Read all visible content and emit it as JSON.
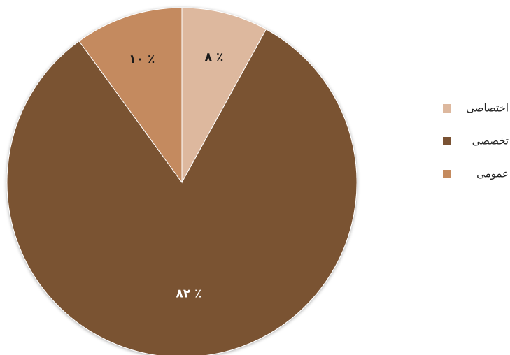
{
  "chart_data": {
    "type": "pie",
    "title": "",
    "slices": [
      {
        "name": "اختصاصی",
        "value": 8,
        "label": "٪ ۸",
        "color": "#DDB89E",
        "label_color": "#1a1a1a"
      },
      {
        "name": "تخصصی",
        "value": 82,
        "label": "٪ ۸۲",
        "color": "#7A5233",
        "label_color": "#ffffff"
      },
      {
        "name": "عمومی",
        "value": 10,
        "label": "٪ ۱۰",
        "color": "#C48A5E",
        "label_color": "#1a1a1a"
      }
    ],
    "start_angle_deg": 0,
    "direction": "clockwise",
    "legend": {
      "position": "right",
      "entries": [
        "اختصاصی",
        "تخصصی",
        "عمومی"
      ]
    }
  }
}
